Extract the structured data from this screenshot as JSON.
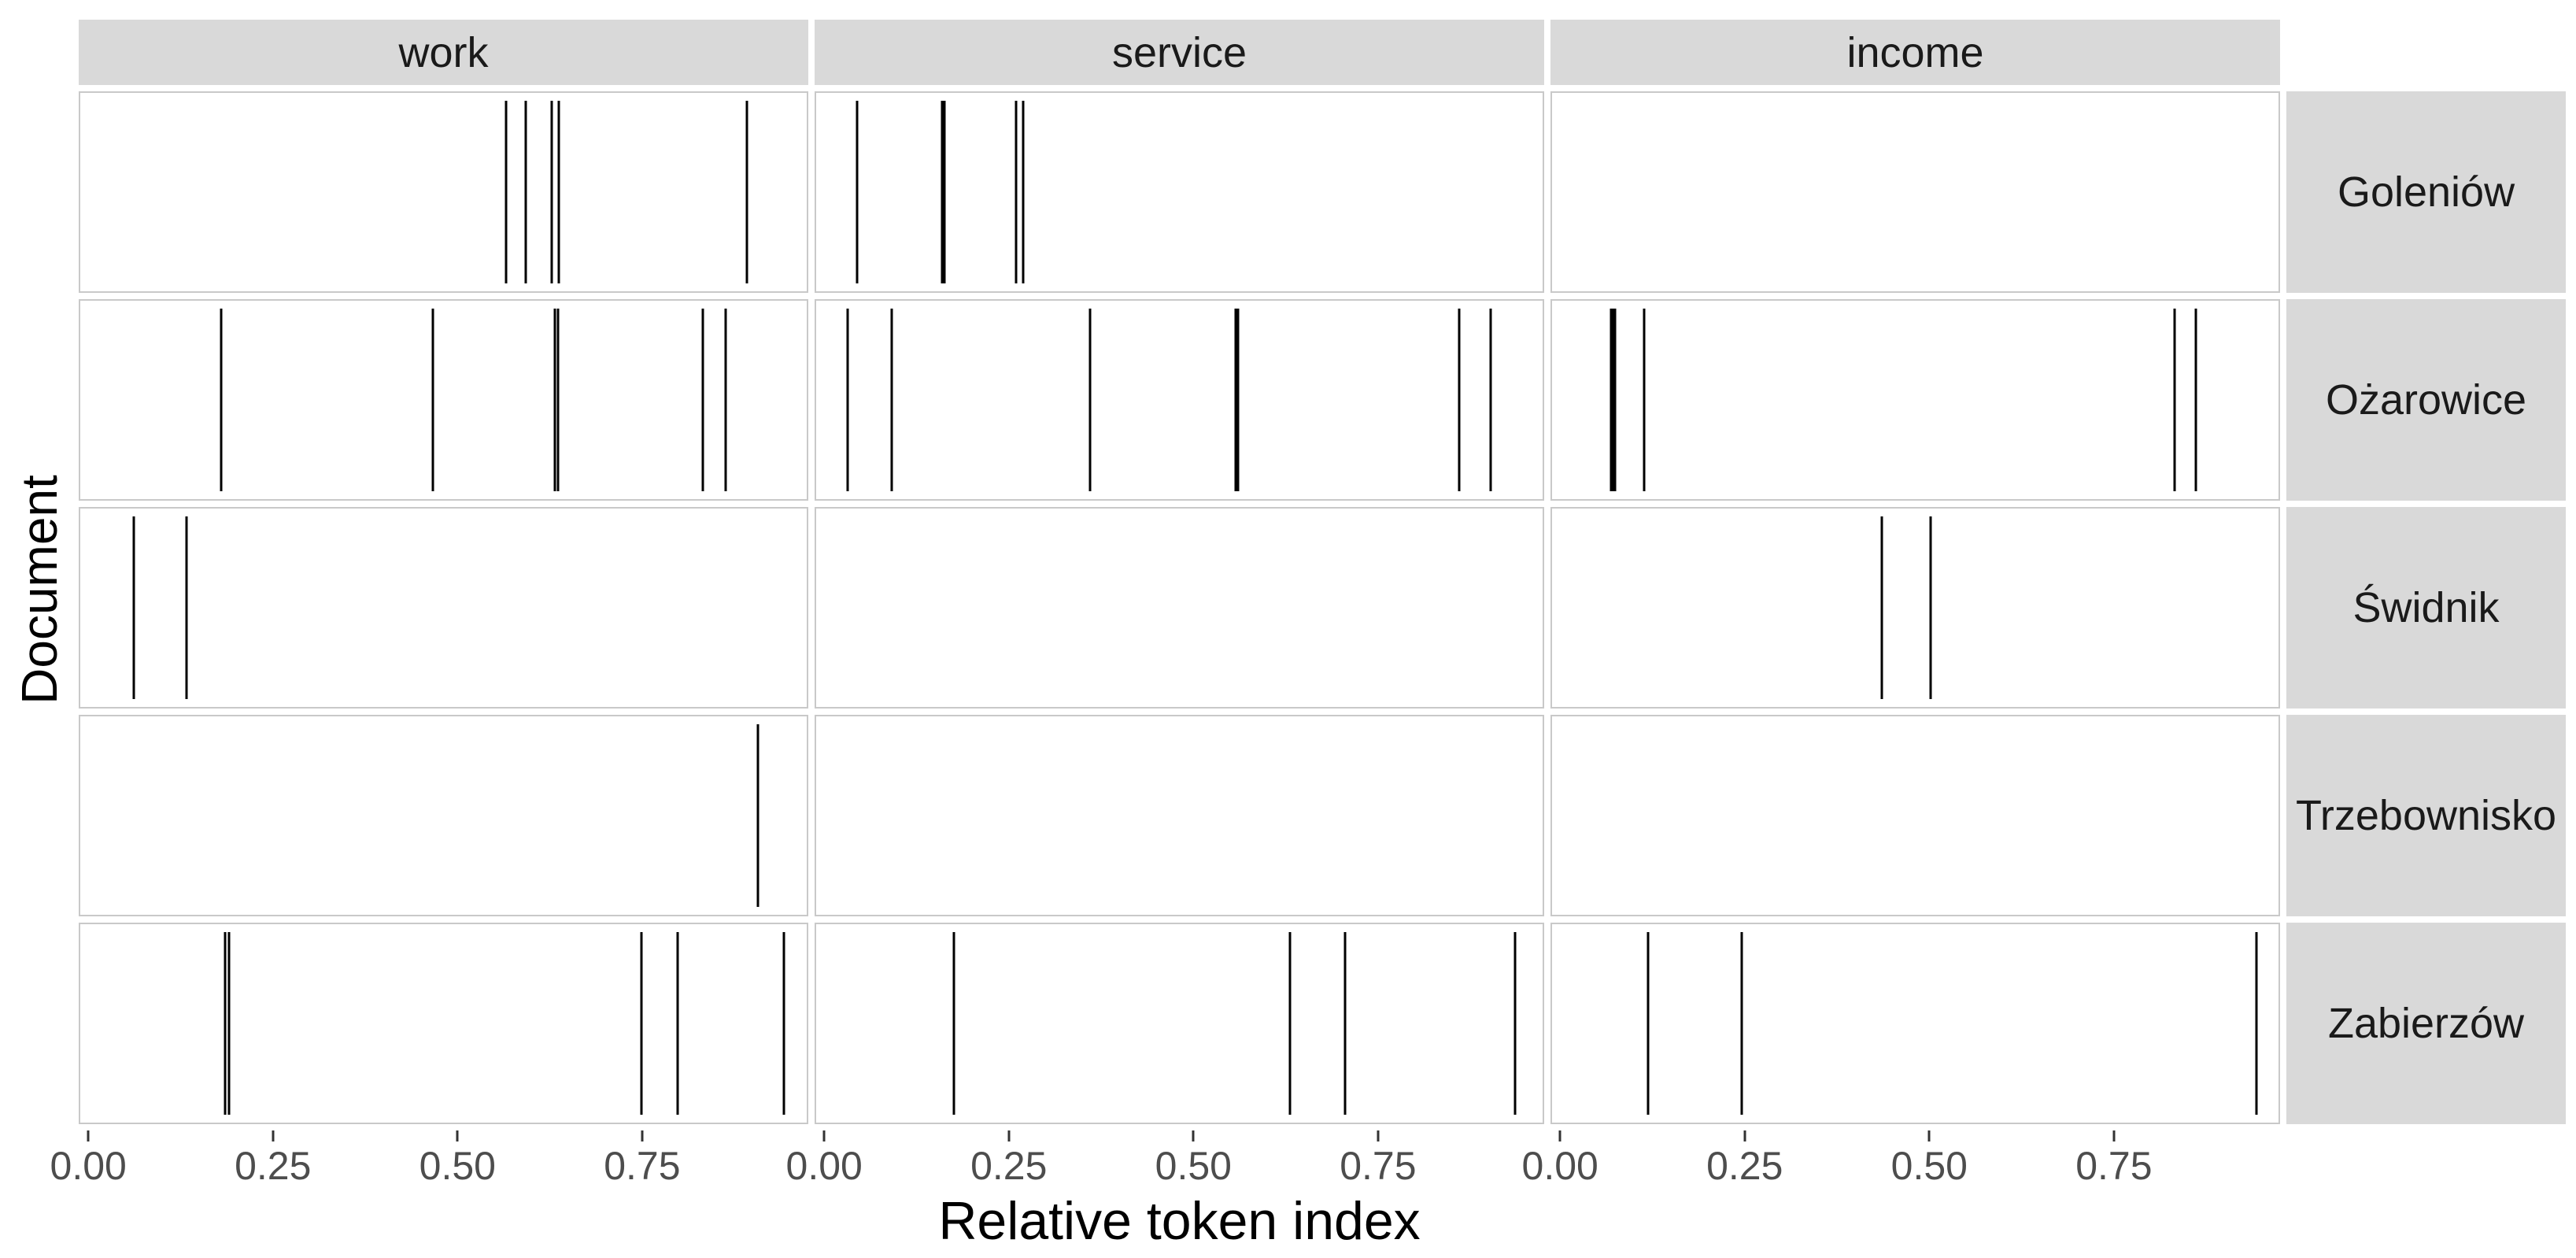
{
  "chart_data": {
    "type": "rug",
    "variant": "lexical-dispersion faceted plot",
    "title": "",
    "xlabel": "Relative token index",
    "ylabel": "Document",
    "col_facets": [
      "work",
      "service",
      "income"
    ],
    "row_facets": [
      "Goleniów",
      "Ożarowice",
      "Świdnik",
      "Trzebownisko",
      "Zabierzów"
    ],
    "x_ticks": [
      0,
      0.25,
      0.5,
      0.75
    ],
    "x_tick_labels": [
      "0.00",
      "0.25",
      "0.50",
      "0.75"
    ],
    "x_domain": [
      -0.013,
      0.975
    ],
    "grid": "off",
    "legend": "none",
    "occurrences": {
      "Goleniów": {
        "work": [
          0.566,
          0.593,
          0.628,
          0.638,
          0.894
        ],
        "service": [
          0.043,
          0.158,
          0.161,
          0.259,
          0.269
        ],
        "income": []
      },
      "Ożarowice": {
        "work": [
          0.179,
          0.467,
          0.633,
          0.637,
          0.834,
          0.865
        ],
        "service": [
          0.03,
          0.09,
          0.36,
          0.557,
          0.561,
          0.861,
          0.904
        ],
        "income": [
          0.067,
          0.07,
          0.073,
          0.112,
          0.834,
          0.863
        ]
      },
      "Świdnik": {
        "work": [
          0.06,
          0.132
        ],
        "service": [],
        "income": [
          0.435,
          0.502
        ]
      },
      "Trzebownisko": {
        "work": [
          0.909
        ],
        "service": [],
        "income": []
      },
      "Zabierzów": {
        "work": [
          0.184,
          0.189,
          0.75,
          0.799,
          0.944
        ],
        "service": [
          0.174,
          0.631,
          0.706,
          0.938
        ],
        "income": [
          0.118,
          0.245,
          0.945
        ]
      }
    },
    "colors": {
      "strip_background": "#d9d9d9",
      "panel_background": "#ffffff",
      "panel_border": "#c9c9c9",
      "line": "#000000",
      "tick_label": "#4d4d4d",
      "axis_title": "#000000"
    }
  }
}
